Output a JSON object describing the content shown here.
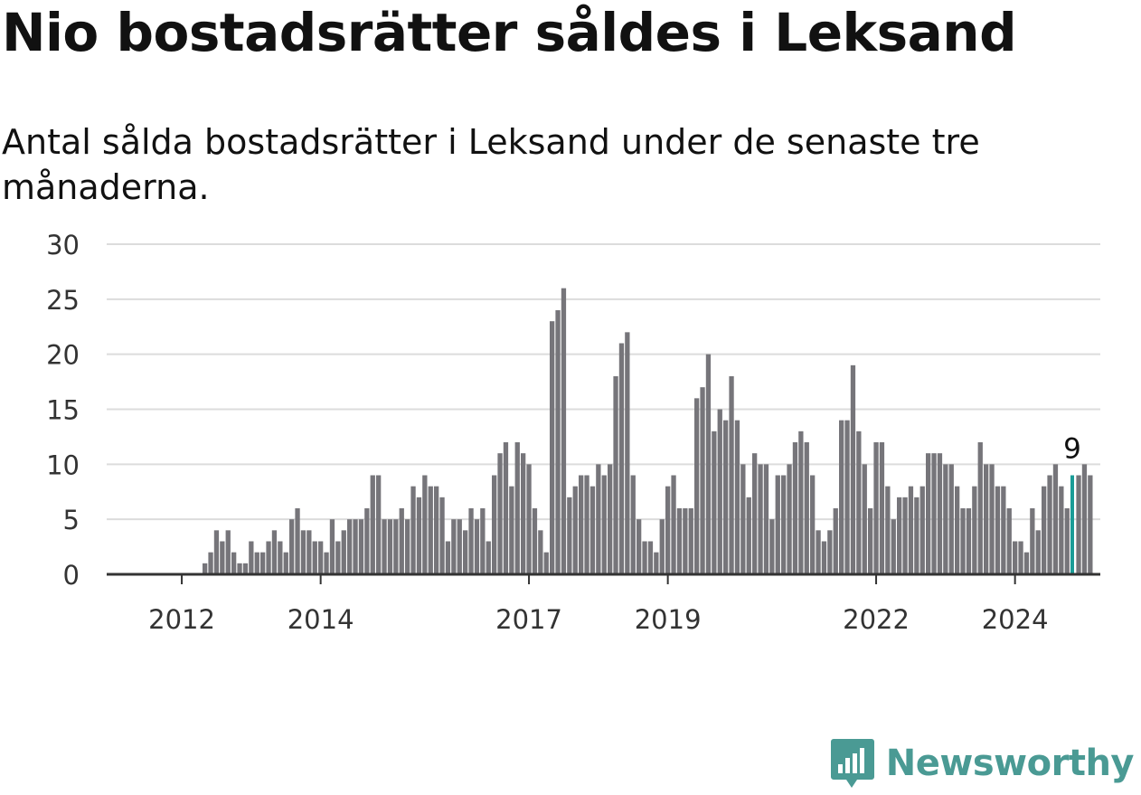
{
  "header": {
    "title": "Nio bostadsrätter såldes i Leksand",
    "subtitle": "Antal sålda bostadsrätter i Leksand under de senaste tre månaderna."
  },
  "brand": {
    "name": "Newsworthy",
    "icon": "newsworthy-logo-icon",
    "color": "#4a9a94"
  },
  "chart_data": {
    "type": "bar",
    "title": "Nio bostadsrätter såldes i Leksand",
    "subtitle": "Antal sålda bostadsrätter i Leksand under de senaste tre månaderna.",
    "xlabel": "",
    "ylabel": "",
    "ylim": [
      0,
      30
    ],
    "yticks": [
      0,
      5,
      10,
      15,
      20,
      25,
      30
    ],
    "xticks": [
      {
        "label": "2012",
        "index": 6
      },
      {
        "label": "2014",
        "index": 30
      },
      {
        "label": "2017",
        "index": 66
      },
      {
        "label": "2019",
        "index": 90
      },
      {
        "label": "2022",
        "index": 126
      },
      {
        "label": "2024",
        "index": 150
      }
    ],
    "grid": true,
    "bar_color": "#76757a",
    "highlight_color": "#1a9c97",
    "highlight_index": 160,
    "highlight_label": "9",
    "values": [
      0,
      0,
      0,
      0,
      0,
      0,
      0,
      0,
      0,
      0,
      1,
      2,
      4,
      3,
      4,
      2,
      1,
      1,
      3,
      2,
      2,
      3,
      4,
      3,
      2,
      5,
      6,
      4,
      4,
      3,
      3,
      2,
      5,
      3,
      4,
      5,
      5,
      5,
      6,
      9,
      9,
      5,
      5,
      5,
      6,
      5,
      8,
      7,
      9,
      8,
      8,
      7,
      3,
      5,
      5,
      4,
      6,
      5,
      6,
      3,
      9,
      11,
      12,
      8,
      12,
      11,
      10,
      6,
      4,
      2,
      23,
      24,
      26,
      7,
      8,
      9,
      9,
      8,
      10,
      9,
      10,
      18,
      21,
      22,
      9,
      5,
      3,
      3,
      2,
      5,
      8,
      9,
      6,
      6,
      6,
      16,
      17,
      20,
      13,
      15,
      14,
      18,
      14,
      10,
      7,
      11,
      10,
      10,
      5,
      9,
      9,
      10,
      12,
      13,
      12,
      9,
      4,
      3,
      4,
      6,
      14,
      14,
      19,
      13,
      10,
      6,
      12,
      12,
      8,
      5,
      7,
      7,
      8,
      7,
      8,
      11,
      11,
      11,
      10,
      10,
      8,
      6,
      6,
      8,
      12,
      10,
      10,
      8,
      8,
      6,
      3,
      3,
      2,
      6,
      4,
      8,
      9,
      10,
      8,
      6,
      9,
      9,
      10,
      9
    ]
  }
}
